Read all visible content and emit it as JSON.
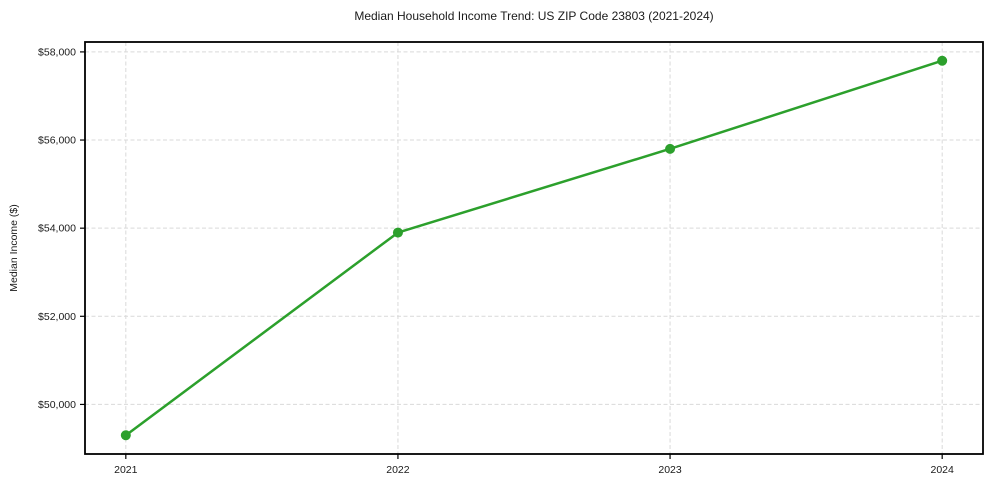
{
  "chart_data": {
    "type": "line",
    "title": "Median Household Income Trend: US ZIP Code 23803 (2021-2024)",
    "xlabel": "",
    "ylabel": "Median Income ($)",
    "x": [
      2021,
      2022,
      2023,
      2024
    ],
    "values": [
      49300,
      53900,
      55800,
      57800
    ],
    "x_ticks": [
      {
        "value": 2021,
        "label": "2021"
      },
      {
        "value": 2022,
        "label": "2022"
      },
      {
        "value": 2023,
        "label": "2023"
      },
      {
        "value": 2024,
        "label": "2024"
      }
    ],
    "y_ticks": [
      {
        "value": 50000,
        "label": "$50,000"
      },
      {
        "value": 52000,
        "label": "$52,000"
      },
      {
        "value": 54000,
        "label": "$54,000"
      },
      {
        "value": 56000,
        "label": "$56,000"
      },
      {
        "value": 58000,
        "label": "$58,000"
      }
    ],
    "xlim": [
      2020.85,
      2024.15
    ],
    "ylim": [
      48875,
      58225
    ],
    "grid": true,
    "grid_dash": "4 2.5",
    "legend": "none",
    "colors": {
      "line": "#2ca02c",
      "marker": "#2ca02c",
      "grid": "#d9d9d9",
      "axis": "#000000",
      "text": "#1a1a1a",
      "background": "#ffffff"
    }
  }
}
